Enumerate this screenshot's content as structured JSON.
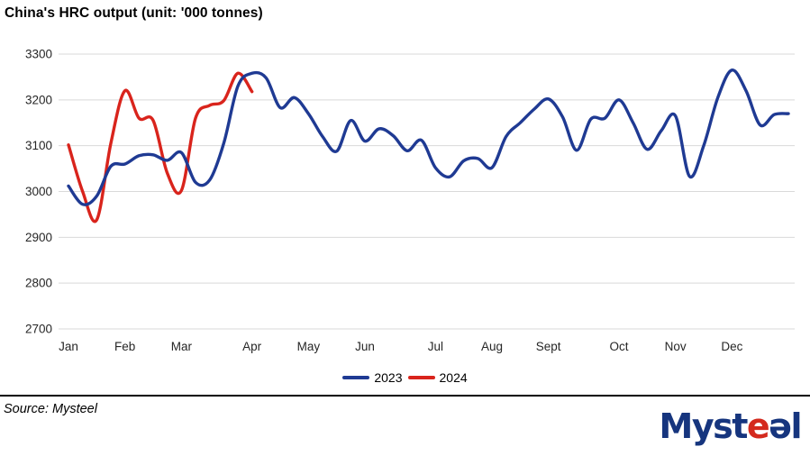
{
  "page": {
    "title": "China's HRC output (unit: '000 tonnes)"
  },
  "footer": {
    "source": "Source: Mysteel",
    "logo": {
      "part_blue_1": "Myst",
      "part_red": "e",
      "part_blue_2": "əl"
    }
  },
  "colors": {
    "series_2023": "#1F3A93",
    "series_2024": "#D9241C",
    "gridline": "#D9D9D9",
    "axis_text": "#262626",
    "title_text": "#000000"
  },
  "chart_data": {
    "type": "line",
    "title": "China's HRC output (unit: '000 tonnes)",
    "unit": "'000 tonnes",
    "ylim": [
      2700,
      3300
    ],
    "y_ticks": [
      3300,
      3200,
      3100,
      3000,
      2900,
      2800,
      2700
    ],
    "grid": true,
    "legend_position": "bottom-center",
    "x_categories": [
      "Jan",
      "Feb",
      "Mar",
      "Apr",
      "May",
      "Jun",
      "Jul",
      "Aug",
      "Sept",
      "Oct",
      "Nov",
      "Dec"
    ],
    "x_frequency": "weekly",
    "month_start_weeks": [
      1,
      5,
      9,
      14,
      18,
      22,
      27,
      31,
      35,
      40,
      44,
      48
    ],
    "series": [
      {
        "name": "2023",
        "color": "#1F3A93",
        "values": [
          3012,
          2972,
          2990,
          3055,
          3060,
          3078,
          3080,
          3068,
          3085,
          3020,
          3025,
          3105,
          3230,
          3258,
          3248,
          3183,
          3205,
          3170,
          3120,
          3088,
          3155,
          3110,
          3137,
          3122,
          3089,
          3112,
          3052,
          3032,
          3067,
          3072,
          3052,
          3120,
          3150,
          3180,
          3202,
          3163,
          3090,
          3158,
          3160,
          3200,
          3150,
          3092,
          3133,
          3165,
          3033,
          3100,
          3205,
          3265,
          3220,
          3145,
          3168,
          3170
        ]
      },
      {
        "name": "2024",
        "color": "#D9241C",
        "values": [
          3102,
          3000,
          2938,
          3105,
          3220,
          3160,
          3155,
          3040,
          3002,
          3160,
          3188,
          3198,
          3258,
          3218
        ]
      }
    ],
    "layout": {
      "x0": 76,
      "week_dx": 15.667,
      "y_top": 60,
      "y_bottom": 365,
      "grid_x1": 65,
      "grid_x2": 882,
      "label_y": 389,
      "stroke_width": 3.4
    }
  }
}
